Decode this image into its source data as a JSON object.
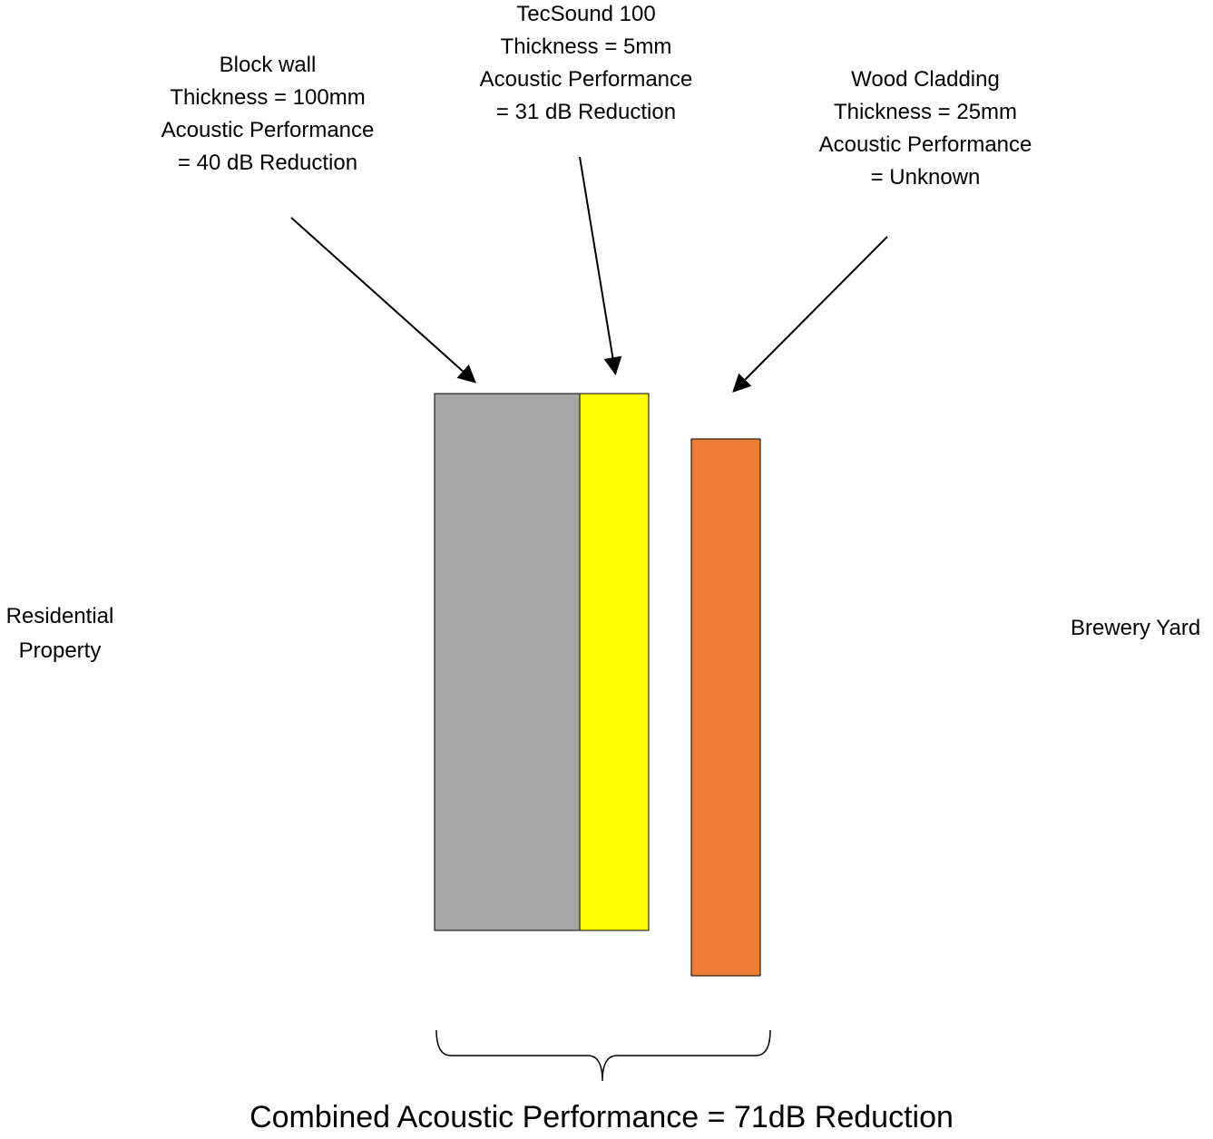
{
  "layers": {
    "block_wall": {
      "name": "Block wall",
      "thickness": "Thickness = 100mm",
      "perf_line1": "Acoustic Performance",
      "perf_line2": "= 40 dB Reduction",
      "color": "#a6a6a6"
    },
    "tecsound": {
      "name": "TecSound 100",
      "thickness": "Thickness = 5mm",
      "perf_line1": "Acoustic Performance",
      "perf_line2": "= 31 dB Reduction",
      "color": "#ffff00"
    },
    "wood_cladding": {
      "name": "Wood Cladding",
      "thickness": "Thickness = 25mm",
      "perf_line1": "Acoustic Performance",
      "perf_line2": "= Unknown",
      "color": "#ed7d31"
    }
  },
  "sides": {
    "left_line1": "Residential",
    "left_line2": "Property",
    "right": "Brewery Yard"
  },
  "combined": "Combined Acoustic Performance = 71dB Reduction"
}
